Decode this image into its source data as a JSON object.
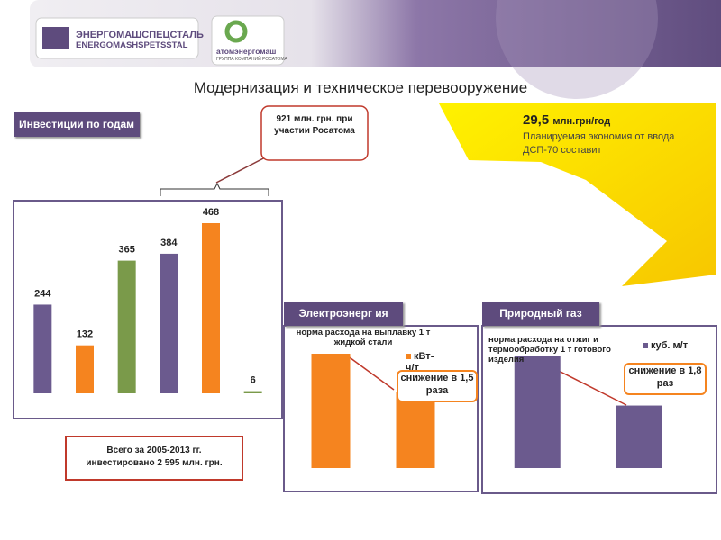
{
  "header": {
    "logo1_ru": "ЭНЕРГОМАШСПЕЦСТАЛЬ",
    "logo1_en": "ENERGOMASHSPETSSTAL",
    "logo2": "атомэнергомаш",
    "logo2_sub": "ГРУППА КОМПАНИЙ РОСАТОМА"
  },
  "title": "Модернизация и техническое перевооружение",
  "callout": "921 млн. грн. при участии Росатома",
  "savings": {
    "value": "29,5",
    "unit": "млн.грн/год",
    "text": "Планируемая экономия от ввода ДСП-70 составит"
  },
  "total_note": "Всего за 2005-2013 гг. инвестировано 2 595 млн. грн.",
  "chart_data": [
    {
      "type": "bar",
      "title": "Инвестиции по годам",
      "categories": [
        null,
        null,
        null,
        null,
        null,
        null
      ],
      "values": [
        244,
        132,
        365,
        384,
        468,
        6
      ],
      "colors": [
        "#6b5a8e",
        "#f5841f",
        "#7a9a4a",
        "#6b5a8e",
        "#f5841f",
        "#7a9a4a"
      ]
    },
    {
      "type": "bar",
      "title": "Электроэнерг ия",
      "subtitle": "норма расхода на выплавку 1 т жидкой стали",
      "categories": [
        null,
        null
      ],
      "values": [
        150,
        100
      ],
      "color": "#f5841f",
      "legend": "кВт-ч/т",
      "annotation": "снижение в 1,5 раза"
    },
    {
      "type": "bar",
      "title": "Природный газ",
      "subtitle": "норма расхода на отжиг и термообработку 1 т готового изделия",
      "categories": [
        null,
        null
      ],
      "values": [
        180,
        100
      ],
      "color": "#6b5a8e",
      "legend": "куб. м/т",
      "annotation": "снижение в 1,8 раз"
    }
  ]
}
